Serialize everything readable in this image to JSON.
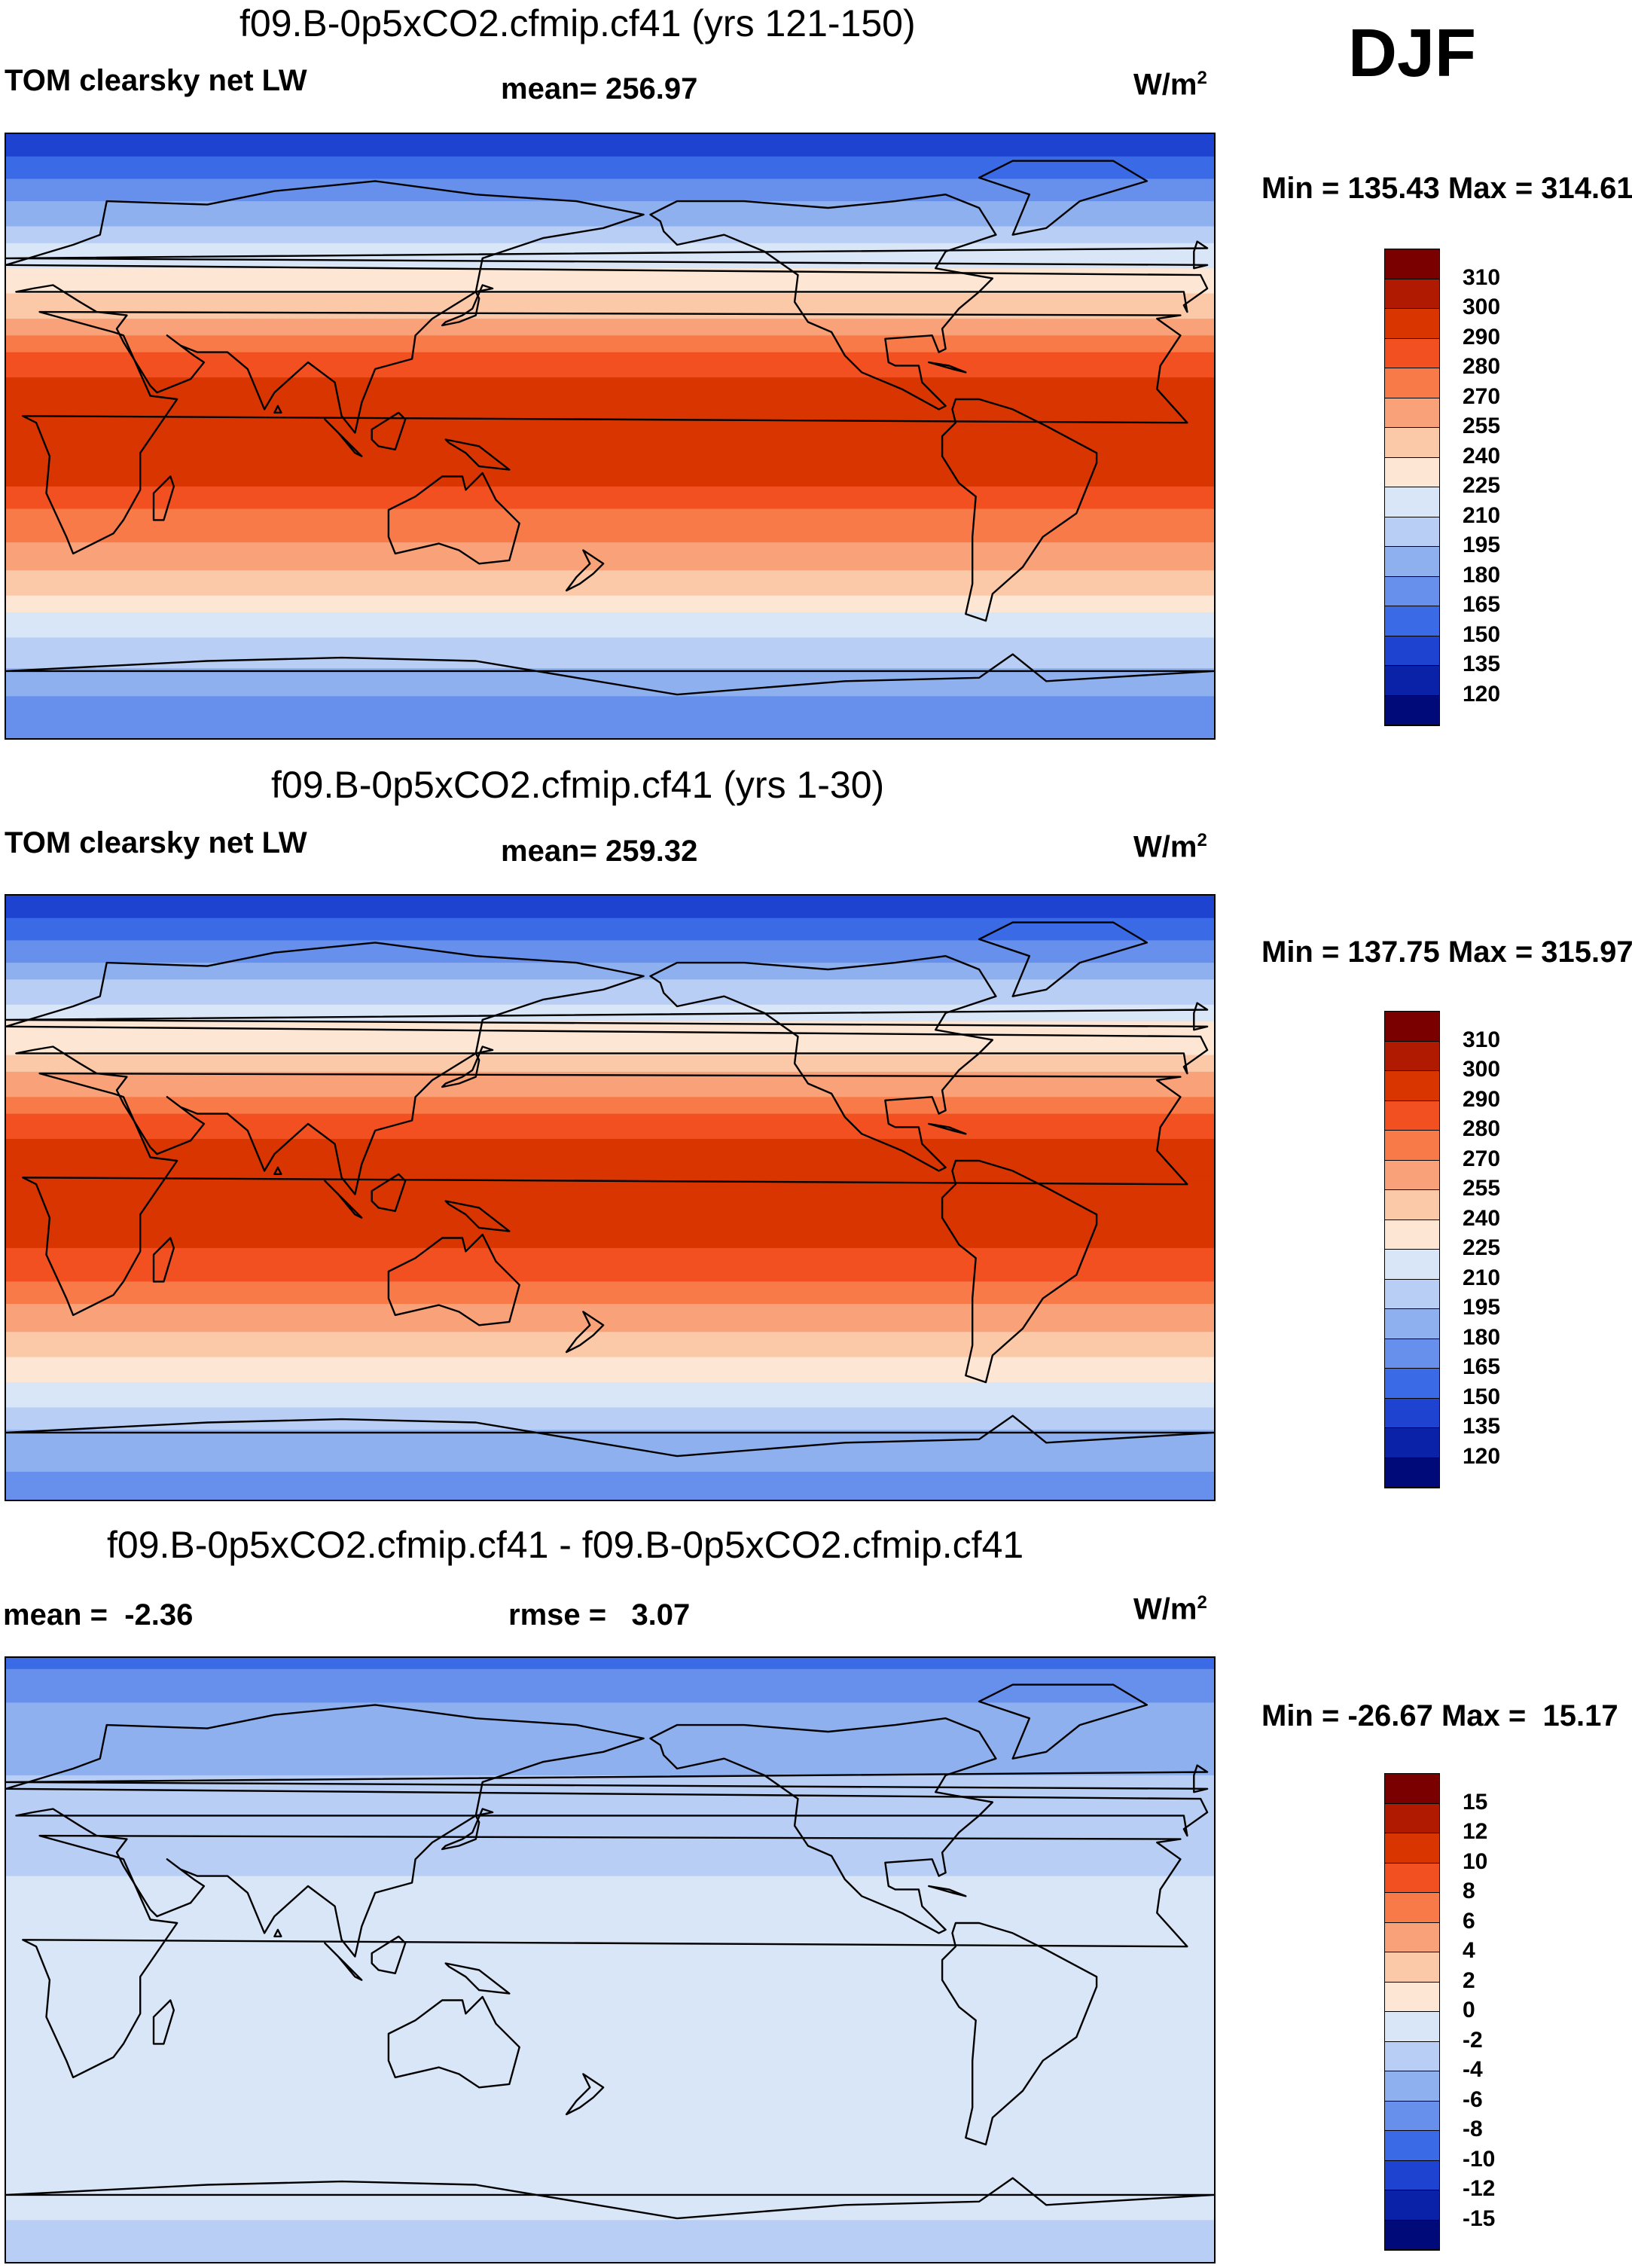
{
  "season": "DJF",
  "units_text": "W/m",
  "units_sup": "2",
  "panel1": {
    "title": "f09.B-0p5xCO2.cfmip.cf41 (yrs 121-150)",
    "label": "TOM clearsky net LW",
    "mean_text": "mean= 256.97",
    "minmax_text": "Min = 135.43 Max = 314.61"
  },
  "panel2": {
    "title": "f09.B-0p5xCO2.cfmip.cf41 (yrs 1-30)",
    "label": "TOM clearsky net LW",
    "mean_text": "mean= 259.32",
    "minmax_text": "Min = 137.75 Max = 315.97"
  },
  "panel3": {
    "title": "f09.B-0p5xCO2.cfmip.cf41 - f09.B-0p5xCO2.cfmip.cf41",
    "mean_text": "mean =  -2.36",
    "rmse_text": "rmse =   3.07",
    "minmax_text": "Min = -26.67 Max =  15.17"
  },
  "colorbar_abs": {
    "levels": [
      "310",
      "300",
      "290",
      "280",
      "270",
      "255",
      "240",
      "225",
      "210",
      "195",
      "180",
      "165",
      "150",
      "135",
      "120"
    ],
    "colors": [
      "#7a0000",
      "#b01a00",
      "#d93500",
      "#f25020",
      "#f77a48",
      "#f9a27a",
      "#fbc8a8",
      "#fde6d4",
      "#d9e6f8",
      "#b8cef4",
      "#8fb0ef",
      "#6690ec",
      "#3a6ae6",
      "#1d43d0",
      "#0a22a8",
      "#000a78"
    ]
  },
  "colorbar_diff": {
    "levels": [
      "15",
      "12",
      "10",
      "8",
      "6",
      "4",
      "2",
      "0",
      "-2",
      "-4",
      "-6",
      "-8",
      "-10",
      "-12",
      "-15"
    ],
    "colors": [
      "#7a0000",
      "#b01a00",
      "#d93500",
      "#f25020",
      "#f77a48",
      "#f9a27a",
      "#fbc8a8",
      "#fde6d4",
      "#d9e6f8",
      "#b8cef4",
      "#8fb0ef",
      "#6690ec",
      "#3a6ae6",
      "#1d43d0",
      "#0a22a8",
      "#000a78"
    ]
  },
  "maps": [
    {
      "name": "map-panel1",
      "kind": "absolute",
      "bands": [
        {
          "lat": 90,
          "v": 135
        },
        {
          "lat": 70,
          "v": 180
        },
        {
          "lat": 55,
          "v": 215
        },
        {
          "lat": 40,
          "v": 245
        },
        {
          "lat": 25,
          "v": 280
        },
        {
          "lat": 10,
          "v": 298
        },
        {
          "lat": 0,
          "v": 292
        },
        {
          "lat": -15,
          "v": 290
        },
        {
          "lat": -35,
          "v": 265
        },
        {
          "lat": -50,
          "v": 232
        },
        {
          "lat": -65,
          "v": 200
        },
        {
          "lat": -90,
          "v": 165
        }
      ]
    },
    {
      "name": "map-panel2",
      "kind": "absolute",
      "bands": [
        {
          "lat": 90,
          "v": 137
        },
        {
          "lat": 70,
          "v": 182
        },
        {
          "lat": 55,
          "v": 218
        },
        {
          "lat": 40,
          "v": 247
        },
        {
          "lat": 25,
          "v": 282
        },
        {
          "lat": 10,
          "v": 300
        },
        {
          "lat": 0,
          "v": 294
        },
        {
          "lat": -15,
          "v": 292
        },
        {
          "lat": -35,
          "v": 267
        },
        {
          "lat": -50,
          "v": 235
        },
        {
          "lat": -65,
          "v": 203
        },
        {
          "lat": -90,
          "v": 168
        }
      ]
    },
    {
      "name": "map-panel3",
      "kind": "diff",
      "bands": [
        {
          "lat": 90,
          "v": -9
        },
        {
          "lat": 70,
          "v": -5
        },
        {
          "lat": 55,
          "v": -4
        },
        {
          "lat": 40,
          "v": -3
        },
        {
          "lat": 25,
          "v": -2
        },
        {
          "lat": 10,
          "v": -2
        },
        {
          "lat": 0,
          "v": -1
        },
        {
          "lat": -15,
          "v": -2
        },
        {
          "lat": -35,
          "v": -2
        },
        {
          "lat": -50,
          "v": -2
        },
        {
          "lat": -65,
          "v": -1
        },
        {
          "lat": -90,
          "v": -3
        }
      ]
    }
  ]
}
